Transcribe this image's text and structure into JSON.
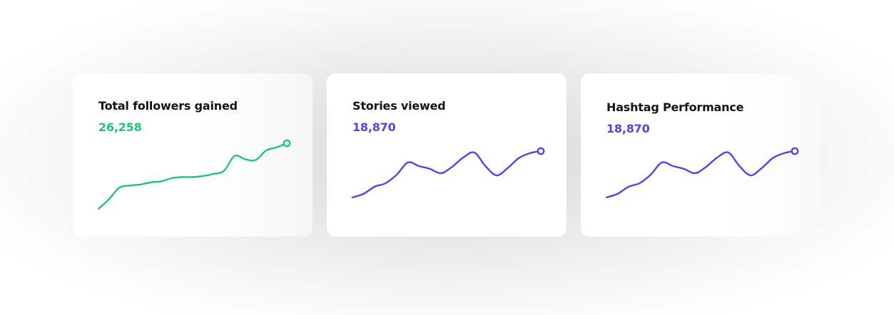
{
  "colors": {
    "green": "#22c472",
    "blue": "#4f46e5"
  },
  "cards": [
    {
      "title": "Total followers gained",
      "value": "26,258",
      "accent": "#22c472",
      "series": [
        0,
        9,
        20,
        22,
        23,
        25,
        26,
        29,
        30,
        30,
        31,
        33,
        36,
        50,
        47,
        46,
        55,
        58,
        62
      ]
    },
    {
      "title": "Stories viewed",
      "value": "18,870",
      "accent": "#4f46e5",
      "series": [
        0,
        5,
        15,
        20,
        32,
        49,
        44,
        40,
        34,
        43,
        56,
        63,
        44,
        31,
        41,
        55,
        62,
        65
      ]
    },
    {
      "title": "Hashtag Performance",
      "value": "18,870",
      "accent": "#4f46e5",
      "series": [
        0,
        5,
        15,
        20,
        32,
        49,
        44,
        40,
        34,
        43,
        56,
        63,
        44,
        31,
        41,
        55,
        62,
        65
      ]
    }
  ]
}
